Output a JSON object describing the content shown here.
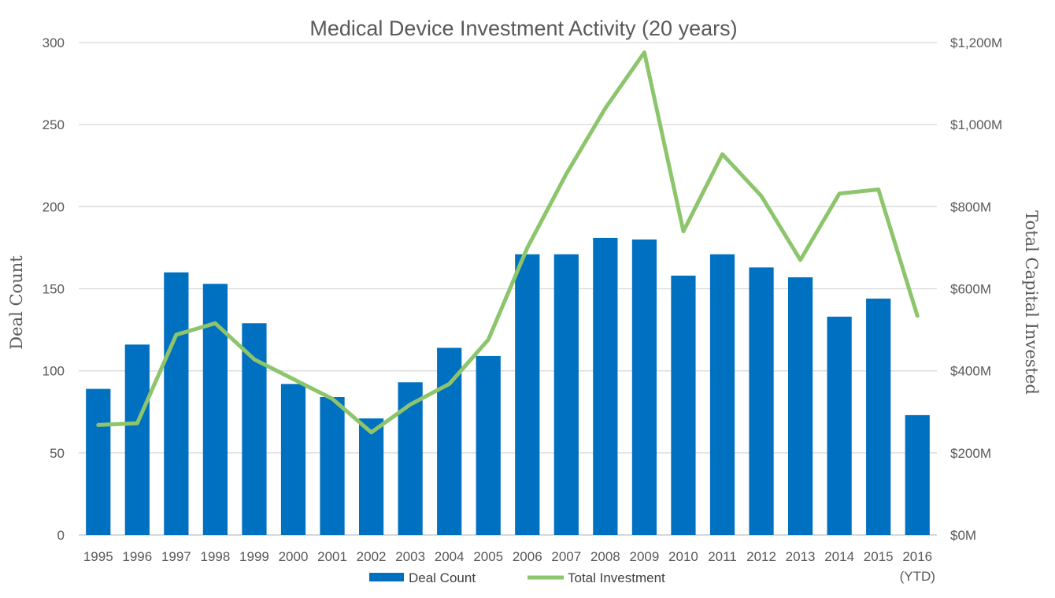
{
  "chart_data": {
    "type": "bar",
    "title": "Medical Device Investment Activity (20 years)",
    "categories": [
      "1995",
      "1996",
      "1997",
      "1998",
      "1999",
      "2000",
      "2001",
      "2002",
      "2003",
      "2004",
      "2005",
      "2006",
      "2007",
      "2008",
      "2009",
      "2010",
      "2011",
      "2012",
      "2013",
      "2014",
      "2015",
      "2016"
    ],
    "category_sublabels": {
      "2016": "(YTD)"
    },
    "series": [
      {
        "name": "Deal Count",
        "type": "bar",
        "axis": "left",
        "color": "#0070C0",
        "values": [
          89,
          116,
          160,
          153,
          129,
          92,
          84,
          71,
          93,
          114,
          109,
          171,
          171,
          181,
          180,
          158,
          171,
          163,
          157,
          133,
          144,
          73
        ]
      },
      {
        "name": "Total Investment",
        "type": "line",
        "axis": "right",
        "color": "#8CC56B",
        "values": [
          268,
          272,
          488,
          516,
          428,
          380,
          332,
          250,
          318,
          368,
          476,
          700,
          880,
          1040,
          1176,
          740,
          928,
          826,
          670,
          832,
          842,
          534
        ]
      }
    ],
    "ylabel": "Deal Count",
    "ylim": [
      0,
      300
    ],
    "yticks": [
      "0",
      "50",
      "100",
      "150",
      "200",
      "250",
      "300"
    ],
    "y2label": "Total Capital Invested",
    "y2lim": [
      0,
      1200
    ],
    "y2ticks": [
      "$0M",
      "$200M",
      "$400M",
      "$600M",
      "$800M",
      "$1,000M",
      "$1,200M"
    ],
    "grid": true,
    "legend": "bottom"
  }
}
